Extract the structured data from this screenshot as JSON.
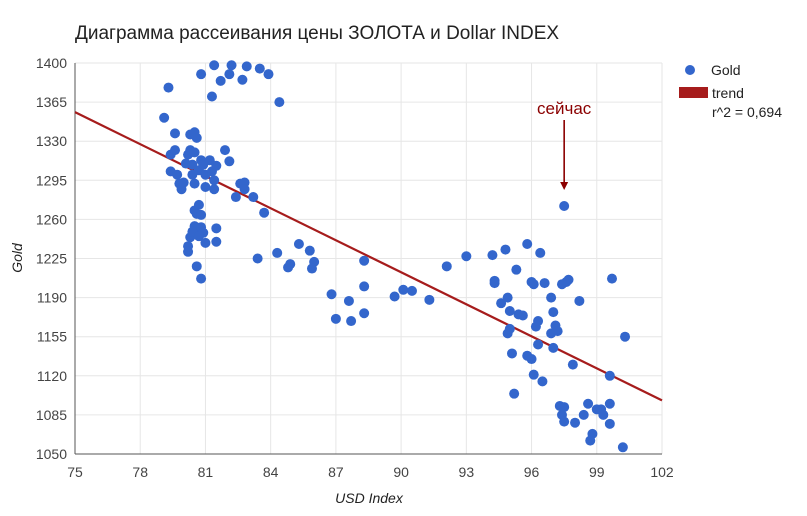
{
  "chart_data": {
    "type": "scatter",
    "title": "Диаграмма рассеивания цены ЗОЛОТА и Dollar INDEX",
    "xlabel": "USD Index",
    "ylabel": "Gold",
    "xlim": [
      75,
      102
    ],
    "ylim": [
      1050,
      1400
    ],
    "x_ticks": [
      75,
      78,
      81,
      84,
      87,
      90,
      93,
      96,
      99,
      102
    ],
    "y_ticks": [
      1050,
      1085,
      1120,
      1155,
      1190,
      1225,
      1260,
      1295,
      1330,
      1365,
      1400
    ],
    "x_tick_labels": [
      "75",
      "78",
      "81",
      "84",
      "87",
      "90",
      "93",
      "96",
      "99",
      "102"
    ],
    "y_tick_labels": [
      "1050",
      "1085",
      "1120",
      "1155",
      "1190",
      "1225",
      "1260",
      "1295",
      "1330",
      "1365",
      "1400"
    ],
    "grid": true,
    "legend_position": "right",
    "colors": {
      "points": "#3366cc",
      "trend": "#a61c1c",
      "annotation": "#8b0000",
      "grid": "#e6e6e6",
      "axis": "#555555"
    },
    "series": [
      {
        "name": "Gold",
        "points": [
          [
            79.1,
            1351
          ],
          [
            79.3,
            1378
          ],
          [
            79.4,
            1318
          ],
          [
            79.6,
            1322
          ],
          [
            79.6,
            1337
          ],
          [
            79.4,
            1303
          ],
          [
            79.7,
            1300
          ],
          [
            79.8,
            1292
          ],
          [
            79.9,
            1287
          ],
          [
            80.0,
            1293
          ],
          [
            80.1,
            1310
          ],
          [
            80.2,
            1318
          ],
          [
            80.3,
            1336
          ],
          [
            80.3,
            1322
          ],
          [
            80.4,
            1309
          ],
          [
            80.5,
            1338
          ],
          [
            80.5,
            1320
          ],
          [
            80.6,
            1333
          ],
          [
            80.4,
            1300
          ],
          [
            80.5,
            1292
          ],
          [
            80.7,
            1304
          ],
          [
            80.8,
            1313
          ],
          [
            80.9,
            1309
          ],
          [
            81.0,
            1289
          ],
          [
            80.5,
            1268
          ],
          [
            80.7,
            1273
          ],
          [
            80.6,
            1265
          ],
          [
            80.8,
            1264
          ],
          [
            80.5,
            1254
          ],
          [
            80.6,
            1247
          ],
          [
            80.8,
            1253
          ],
          [
            80.9,
            1248
          ],
          [
            80.3,
            1244
          ],
          [
            80.4,
            1249
          ],
          [
            80.7,
            1245
          ],
          [
            81.0,
            1239
          ],
          [
            80.2,
            1236
          ],
          [
            80.2,
            1231
          ],
          [
            80.6,
            1218
          ],
          [
            80.8,
            1207
          ],
          [
            81.0,
            1300
          ],
          [
            81.2,
            1313
          ],
          [
            81.3,
            1303
          ],
          [
            81.5,
            1308
          ],
          [
            81.4,
            1295
          ],
          [
            81.4,
            1287
          ],
          [
            81.5,
            1252
          ],
          [
            81.5,
            1240
          ],
          [
            80.8,
            1390
          ],
          [
            81.4,
            1398
          ],
          [
            81.3,
            1370
          ],
          [
            81.7,
            1384
          ],
          [
            82.1,
            1390
          ],
          [
            82.2,
            1398
          ],
          [
            82.7,
            1385
          ],
          [
            82.9,
            1397
          ],
          [
            83.5,
            1395
          ],
          [
            83.9,
            1390
          ],
          [
            84.4,
            1365
          ],
          [
            81.9,
            1322
          ],
          [
            82.1,
            1312
          ],
          [
            82.4,
            1280
          ],
          [
            82.6,
            1292
          ],
          [
            82.8,
            1293
          ],
          [
            82.8,
            1287
          ],
          [
            83.2,
            1280
          ],
          [
            83.4,
            1225
          ],
          [
            83.7,
            1266
          ],
          [
            84.3,
            1230
          ],
          [
            84.8,
            1217
          ],
          [
            84.9,
            1220
          ],
          [
            85.3,
            1238
          ],
          [
            85.8,
            1232
          ],
          [
            86.0,
            1222
          ],
          [
            85.9,
            1216
          ],
          [
            86.8,
            1193
          ],
          [
            87.0,
            1171
          ],
          [
            87.6,
            1187
          ],
          [
            87.7,
            1169
          ],
          [
            88.3,
            1223
          ],
          [
            88.3,
            1200
          ],
          [
            88.3,
            1176
          ],
          [
            89.7,
            1191
          ],
          [
            90.1,
            1197
          ],
          [
            90.5,
            1196
          ],
          [
            91.3,
            1188
          ],
          [
            92.1,
            1218
          ],
          [
            93.0,
            1227
          ],
          [
            94.2,
            1228
          ],
          [
            94.3,
            1205
          ],
          [
            94.3,
            1203
          ],
          [
            94.6,
            1185
          ],
          [
            94.8,
            1233
          ],
          [
            94.9,
            1190
          ],
          [
            95.0,
            1178
          ],
          [
            94.9,
            1158
          ],
          [
            95.0,
            1162
          ],
          [
            95.1,
            1140
          ],
          [
            95.2,
            1104
          ],
          [
            95.3,
            1215
          ],
          [
            95.4,
            1175
          ],
          [
            95.6,
            1174
          ],
          [
            95.8,
            1238
          ],
          [
            95.8,
            1138
          ],
          [
            96.0,
            1135
          ],
          [
            96.1,
            1202
          ],
          [
            96.0,
            1204
          ],
          [
            96.2,
            1164
          ],
          [
            96.3,
            1169
          ],
          [
            96.3,
            1148
          ],
          [
            96.1,
            1121
          ],
          [
            96.5,
            1115
          ],
          [
            96.4,
            1230
          ],
          [
            96.6,
            1203
          ],
          [
            96.9,
            1190
          ],
          [
            97.0,
            1177
          ],
          [
            96.9,
            1158
          ],
          [
            97.0,
            1145
          ],
          [
            97.1,
            1165
          ],
          [
            97.2,
            1160
          ],
          [
            97.3,
            1093
          ],
          [
            97.5,
            1092
          ],
          [
            97.4,
            1085
          ],
          [
            97.5,
            1079
          ],
          [
            97.6,
            1204
          ],
          [
            97.7,
            1206
          ],
          [
            97.4,
            1202
          ],
          [
            97.5,
            1272
          ],
          [
            97.9,
            1130
          ],
          [
            98.0,
            1078
          ],
          [
            98.2,
            1187
          ],
          [
            98.4,
            1085
          ],
          [
            98.6,
            1095
          ],
          [
            98.8,
            1068
          ],
          [
            98.7,
            1062
          ],
          [
            99.0,
            1090
          ],
          [
            99.2,
            1090
          ],
          [
            99.3,
            1085
          ],
          [
            99.6,
            1095
          ],
          [
            99.6,
            1120
          ],
          [
            99.6,
            1077
          ],
          [
            99.7,
            1207
          ],
          [
            100.2,
            1056
          ],
          [
            100.3,
            1155
          ]
        ]
      },
      {
        "name": "trend",
        "line": [
          [
            75,
            1356
          ],
          [
            102,
            1098
          ]
        ]
      }
    ],
    "legend_items": [
      "Gold",
      "trend"
    ],
    "r_squared_label": "r^2 = 0,694",
    "annotation": {
      "text": "сейчас",
      "target": [
        97.5,
        1272
      ]
    }
  }
}
